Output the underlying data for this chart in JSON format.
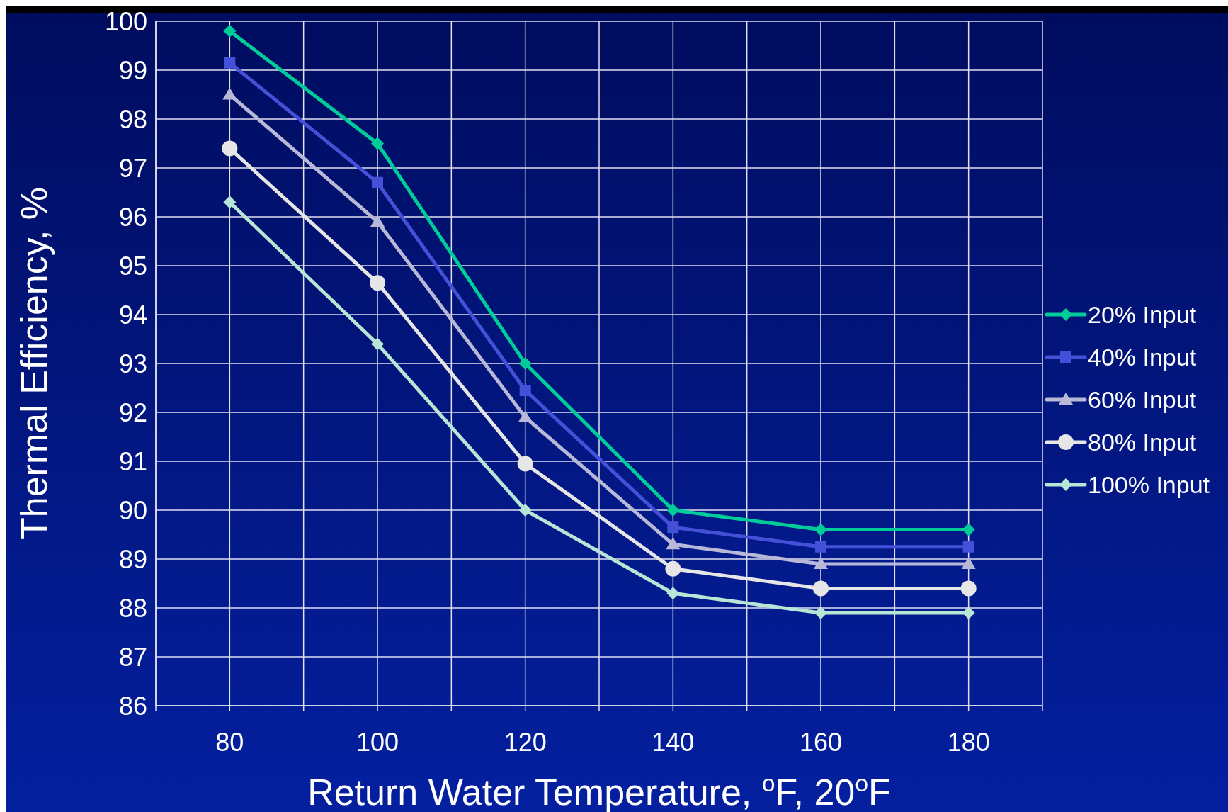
{
  "chart_data": {
    "type": "line",
    "xlabel": "Return Water Temperature, $^{o}$F, 20$^{o}$F",
    "ylabel": "Thermal Efficiency, %",
    "x": [
      80,
      100,
      120,
      140,
      160,
      180
    ],
    "xlim": [
      70,
      190
    ],
    "xticks": [
      {
        "value": 70,
        "label": null
      },
      80,
      {
        "value": 90,
        "label": null
      },
      100,
      {
        "value": 110,
        "label": null
      },
      120,
      {
        "value": 130,
        "label": null
      },
      140,
      {
        "value": 150,
        "label": null
      },
      160,
      {
        "value": 170,
        "label": null
      },
      180,
      {
        "value": 190,
        "label": null
      }
    ],
    "ylim": [
      86,
      100
    ],
    "yticks": [
      86,
      87,
      88,
      89,
      90,
      91,
      92,
      93,
      94,
      95,
      96,
      97,
      98,
      99,
      100
    ],
    "grid": true,
    "legend": "right",
    "series": [
      {
        "name": "20% Input",
        "color": "#00cc99",
        "marker": "diamond",
        "values": [
          99.8,
          97.5,
          93.0,
          90.0,
          89.6,
          89.6
        ]
      },
      {
        "name": "40% Input",
        "color": "#4450d8",
        "marker": "square",
        "values": [
          99.15,
          96.7,
          92.45,
          89.65,
          89.25,
          89.25
        ]
      },
      {
        "name": "60% Input",
        "color": "#b8b8d8",
        "marker": "triangle",
        "values": [
          98.5,
          95.9,
          91.9,
          89.3,
          88.9,
          88.9
        ]
      },
      {
        "name": "80% Input",
        "color": "#e6e6e6",
        "marker": "circle",
        "values": [
          97.4,
          94.65,
          90.95,
          88.8,
          88.4,
          88.4
        ]
      },
      {
        "name": "100% Input",
        "color": "#b8e6d6",
        "marker": "diamond",
        "values": [
          96.3,
          93.4,
          90.0,
          88.3,
          87.9,
          87.9
        ]
      }
    ]
  }
}
